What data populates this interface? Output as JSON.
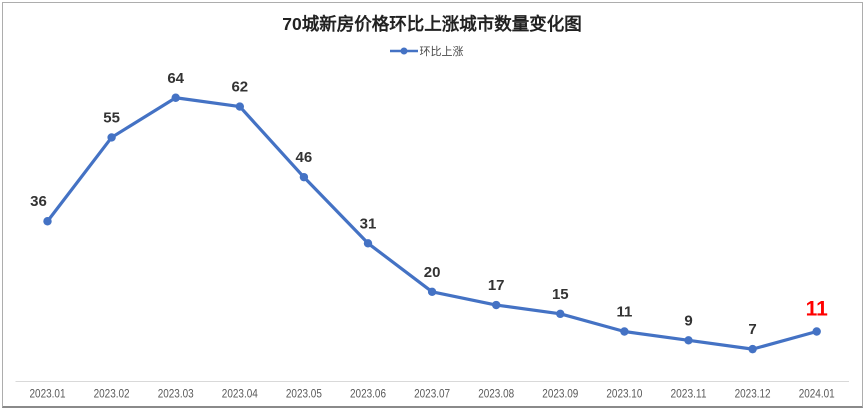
{
  "title": "70城新房价格环比上涨城市数量变化图",
  "legend": {
    "label": "环比上涨"
  },
  "chart_data": {
    "type": "line",
    "title": "70城新房价格环比上涨城市数量变化图",
    "categories": [
      "2023.01",
      "2023.02",
      "2023.03",
      "2023.04",
      "2023.05",
      "2023.06",
      "2023.07",
      "2023.08",
      "2023.09",
      "2023.10",
      "2023.11",
      "2023.12",
      "2024.01"
    ],
    "series": [
      {
        "name": "环比上涨",
        "values": [
          36,
          55,
          64,
          62,
          46,
          31,
          20,
          17,
          15,
          11,
          9,
          7,
          11
        ]
      }
    ],
    "ylim": [
      0,
      70
    ],
    "grid": false,
    "legend_position": "top",
    "data_labels": true,
    "colors": {
      "line": "#4472C4",
      "marker": "#4472C4",
      "data_label": "#333333",
      "last_data_label": "#FF0000",
      "axis_line": "#D9D9D9",
      "axis_label": "#595959"
    }
  }
}
